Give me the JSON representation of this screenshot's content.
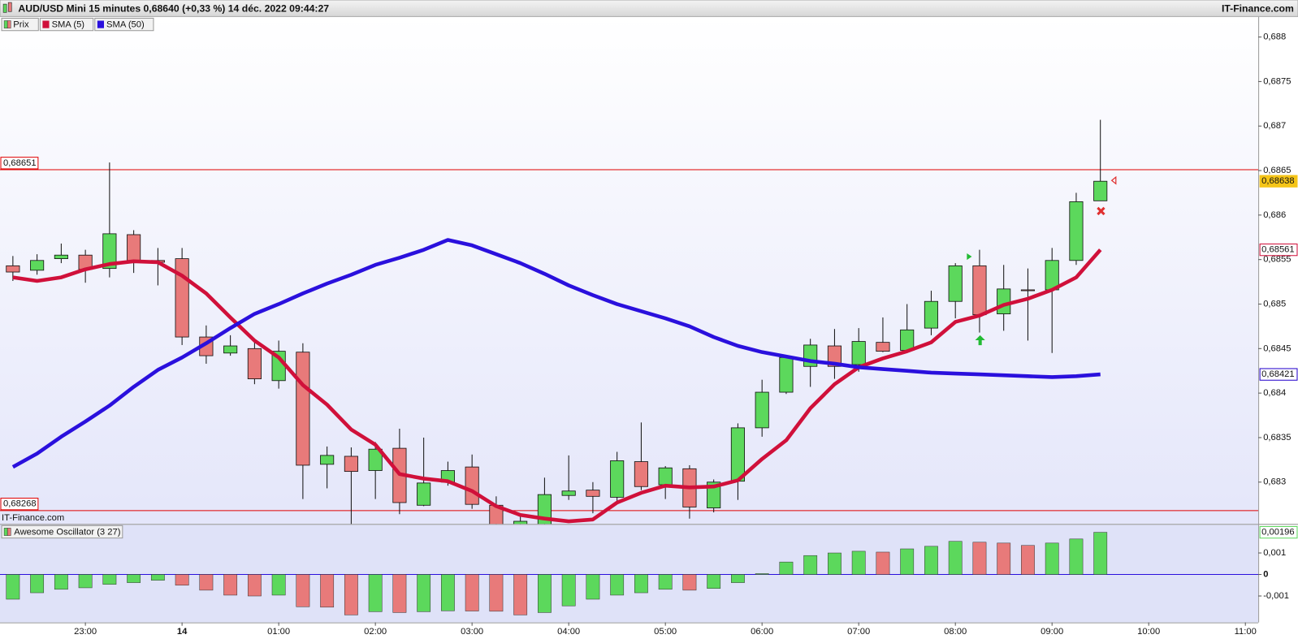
{
  "header": {
    "title": "AUD/USD Mini 15 minutes 0,68640 (+0,33 %) 14 déc. 2022 09:44:27",
    "brand": "IT-Finance.com"
  },
  "chart_data": [
    {
      "type": "candlestick",
      "watermark": "IT-Finance.com",
      "x": [
        "22:15",
        "22:30",
        "22:45",
        "23:00",
        "23:15",
        "23:30",
        "23:45",
        "00:00",
        "00:15",
        "00:30",
        "00:45",
        "01:00",
        "01:15",
        "01:30",
        "01:45",
        "02:00",
        "02:15",
        "02:30",
        "02:45",
        "03:00",
        "03:15",
        "03:30",
        "03:45",
        "04:00",
        "04:15",
        "04:30",
        "04:45",
        "05:00",
        "05:15",
        "05:30",
        "05:45",
        "06:00",
        "06:15",
        "06:30",
        "06:45",
        "07:00",
        "07:15",
        "07:30",
        "07:45",
        "08:00",
        "08:15",
        "08:30",
        "08:45",
        "09:00",
        "09:15",
        "09:30"
      ],
      "xlim": [
        "22:07",
        "11:08"
      ],
      "xticks": [
        "23:00",
        {
          "value": "00:00",
          "label": "14"
        },
        "01:00",
        "02:00",
        "03:00",
        "04:00",
        "05:00",
        "06:00",
        "07:00",
        "08:00",
        "09:00",
        "10:00",
        "11:00"
      ],
      "ylim": [
        0.68253,
        0.68823
      ],
      "yticks": [
        {
          "value": 0.688,
          "label": "0,688"
        },
        {
          "value": 0.6875,
          "label": "0,6875"
        },
        {
          "value": 0.687,
          "label": "0,687"
        },
        {
          "value": 0.6865,
          "label": "0,6865"
        },
        {
          "value": 0.686,
          "label": "0,686"
        },
        {
          "value": 0.6855,
          "label": "0,6855"
        },
        {
          "value": 0.685,
          "label": "0,685"
        },
        {
          "value": 0.6845,
          "label": "0,6845"
        },
        {
          "value": 0.684,
          "label": "0,684"
        },
        {
          "value": 0.6835,
          "label": "0,6835"
        },
        {
          "value": 0.683,
          "label": "0,683"
        }
      ],
      "levels": [
        {
          "value": 0.68651,
          "label": "0,68651",
          "color": "#e00000"
        },
        {
          "value": 0.68268,
          "label": "0,68268",
          "color": "#e00000"
        }
      ],
      "last_values": [
        {
          "value": 0.68638,
          "label": "0,68638",
          "color": "#f5c518"
        },
        {
          "value": 0.68561,
          "label": "0,68561",
          "color": "#d0103a"
        },
        {
          "value": 0.68421,
          "label": "0,68421",
          "color": "#2200cc"
        }
      ],
      "series": [
        {
          "name": "Prix",
          "color_up": "#5cd85c",
          "color_down": "#e87a7a",
          "open": [
            0.68543,
            0.68538,
            0.68551,
            0.68555,
            0.6854,
            0.68578,
            0.68549,
            0.68551,
            0.68463,
            0.68445,
            0.6845,
            0.68414,
            0.68446,
            0.6832,
            0.68329,
            0.68313,
            0.68338,
            0.68274,
            0.683,
            0.68317,
            0.68274,
            0.68247,
            0.68251,
            0.68285,
            0.68291,
            0.68283,
            0.68323,
            0.68297,
            0.68315,
            0.68271,
            0.68301,
            0.68361,
            0.68401,
            0.6843,
            0.68453,
            0.68432,
            0.68457,
            0.68448,
            0.68473,
            0.68503,
            0.68543,
            0.68489,
            0.68516,
            0.68516,
            0.68549,
            0.68616
          ],
          "high": [
            0.68554,
            0.68556,
            0.68568,
            0.68561,
            0.68659,
            0.68583,
            0.68563,
            0.68563,
            0.68476,
            0.68465,
            0.68461,
            0.68459,
            0.68456,
            0.6834,
            0.68339,
            0.68345,
            0.6836,
            0.6835,
            0.68323,
            0.68331,
            0.68284,
            0.68265,
            0.68305,
            0.6833,
            0.683,
            0.68334,
            0.68367,
            0.68318,
            0.68319,
            0.68303,
            0.68366,
            0.68415,
            0.68442,
            0.68461,
            0.68472,
            0.68473,
            0.68485,
            0.685,
            0.68515,
            0.68546,
            0.68561,
            0.68544,
            0.6854,
            0.68563,
            0.68625,
            0.68707
          ],
          "low": [
            0.68526,
            0.68533,
            0.68546,
            0.68524,
            0.6853,
            0.68535,
            0.68521,
            0.68454,
            0.68433,
            0.68442,
            0.6841,
            0.68405,
            0.68281,
            0.68293,
            0.68247,
            0.68281,
            0.68264,
            0.68273,
            0.68296,
            0.6827,
            0.68228,
            0.68238,
            0.68247,
            0.6828,
            0.68265,
            0.68278,
            0.68291,
            0.68281,
            0.68259,
            0.68266,
            0.6828,
            0.68351,
            0.68399,
            0.68407,
            0.68416,
            0.68424,
            0.68446,
            0.68445,
            0.68465,
            0.68484,
            0.68468,
            0.6847,
            0.68459,
            0.68445,
            0.68544,
            0.68616
          ],
          "close": [
            0.68536,
            0.68549,
            0.68555,
            0.68539,
            0.68579,
            0.68549,
            0.68547,
            0.68463,
            0.68442,
            0.68453,
            0.68416,
            0.68447,
            0.68319,
            0.6833,
            0.68312,
            0.68337,
            0.68277,
            0.68299,
            0.68313,
            0.68275,
            0.68247,
            0.68256,
            0.68286,
            0.6829,
            0.68284,
            0.68324,
            0.68295,
            0.68316,
            0.68272,
            0.683,
            0.68361,
            0.68401,
            0.6844,
            0.68454,
            0.6843,
            0.68458,
            0.68447,
            0.68471,
            0.68503,
            0.68543,
            0.68488,
            0.68517,
            0.68515,
            0.68549,
            0.68615,
            0.68638
          ]
        },
        {
          "name": "SMA (5)",
          "color": "#d0103a",
          "values": [
            0.6853,
            0.68526,
            0.6853,
            0.68539,
            0.68545,
            0.68548,
            0.68547,
            0.68532,
            0.68512,
            0.68485,
            0.68459,
            0.6844,
            0.68409,
            0.68387,
            0.68359,
            0.68342,
            0.68309,
            0.68304,
            0.68301,
            0.6829,
            0.68273,
            0.68263,
            0.68259,
            0.68256,
            0.68258,
            0.68277,
            0.68288,
            0.68296,
            0.68294,
            0.68295,
            0.68302,
            0.68326,
            0.68347,
            0.68383,
            0.6841,
            0.68429,
            0.68439,
            0.68447,
            0.68457,
            0.6848,
            0.68487,
            0.68499,
            0.68506,
            0.68516,
            0.6853,
            0.68561
          ]
        },
        {
          "name": "SMA (50)",
          "color": "#2a10dd",
          "values": [
            0.68317,
            0.68332,
            0.68351,
            0.68368,
            0.68386,
            0.68407,
            0.68426,
            0.6844,
            0.68456,
            0.68473,
            0.68489,
            0.685,
            0.68512,
            0.68523,
            0.68533,
            0.68544,
            0.68552,
            0.68561,
            0.68572,
            0.68566,
            0.68556,
            0.68546,
            0.68534,
            0.68521,
            0.6851,
            0.685,
            0.68492,
            0.68484,
            0.68475,
            0.68463,
            0.68453,
            0.68446,
            0.68441,
            0.68436,
            0.68433,
            0.68429,
            0.68427,
            0.68425,
            0.68423,
            0.68422,
            0.68421,
            0.6842,
            0.68419,
            0.68418,
            0.68419,
            0.68421
          ]
        }
      ]
    },
    {
      "type": "bar",
      "ylim": [
        -0.00223,
        0.00231
      ],
      "yticks": [
        {
          "value": 0.001,
          "label": "0,001"
        },
        0,
        {
          "value": -0.001,
          "label": "-0,001"
        }
      ],
      "last_value": {
        "value": 0.00196,
        "label": "0,00196"
      },
      "series": [
        {
          "name": "Awesome Oscillator (3 27)",
          "color_up": "#5cd85c",
          "color_down": "#e87a7a",
          "values": [
            -0.00115,
            -0.00085,
            -0.00069,
            -0.00062,
            -0.00046,
            -0.00038,
            -0.00027,
            -0.0005,
            -0.00073,
            -0.00096,
            -0.001,
            -0.00096,
            -0.0015,
            -0.00152,
            -0.00188,
            -0.00173,
            -0.00177,
            -0.00173,
            -0.00169,
            -0.0017,
            -0.00171,
            -0.00188,
            -0.00177,
            -0.00146,
            -0.00115,
            -0.00096,
            -0.00085,
            -0.00069,
            -0.00073,
            -0.00065,
            -0.00038,
            4e-05,
            0.00058,
            0.00088,
            0.001,
            0.00108,
            0.00104,
            0.00119,
            0.00131,
            0.00154,
            0.0015,
            0.00146,
            0.00135,
            0.00146,
            0.00165,
            0.00196
          ]
        }
      ]
    }
  ]
}
